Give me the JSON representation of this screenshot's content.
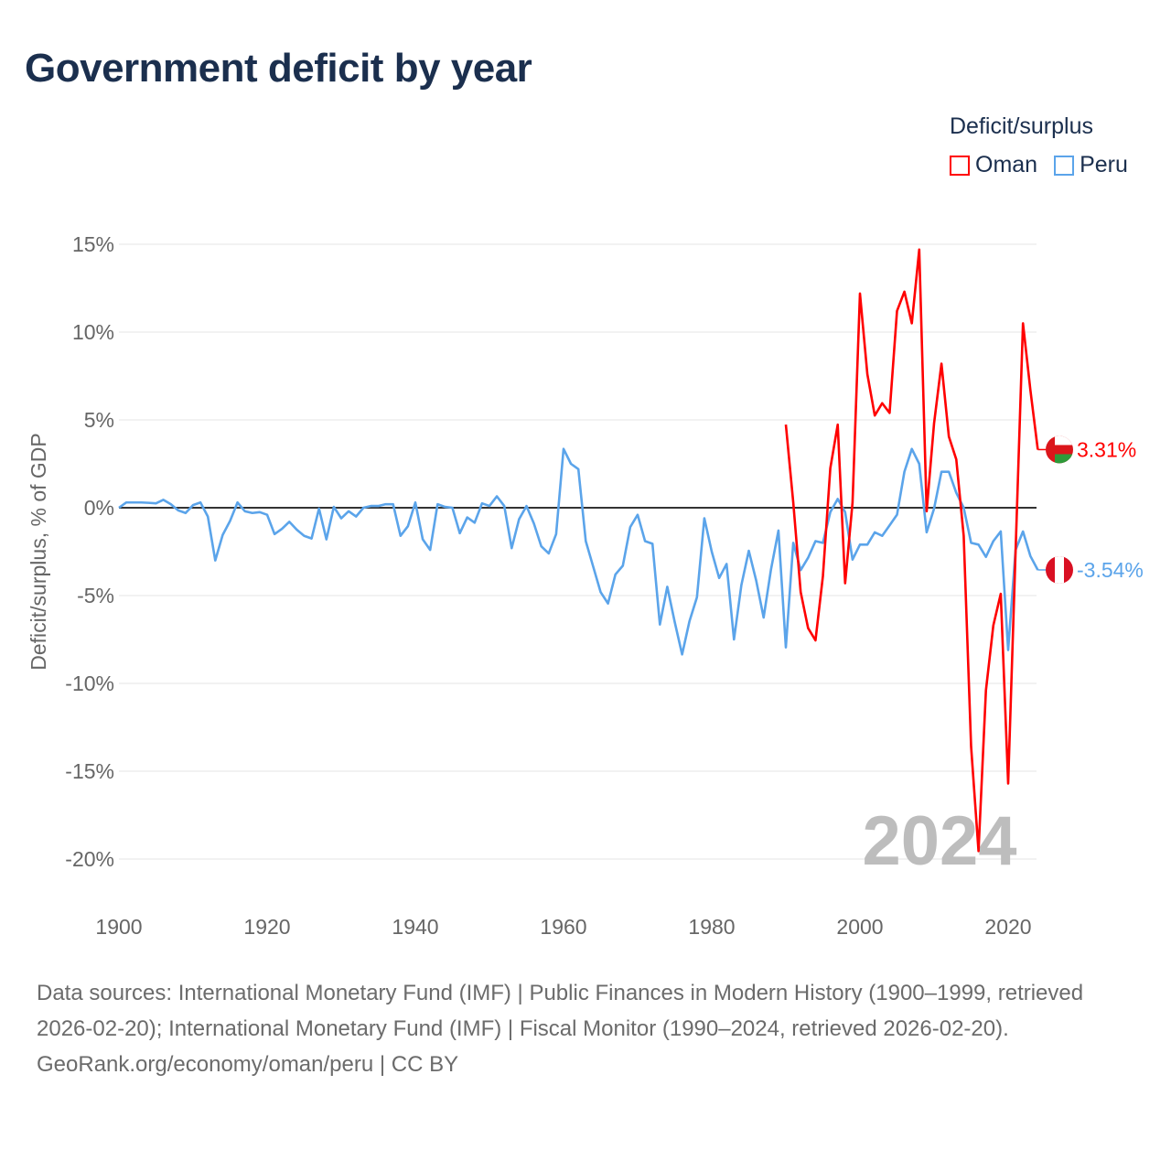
{
  "title": "Government deficit by year",
  "legend": {
    "title": "Deficit/surplus",
    "items": [
      {
        "name": "Oman",
        "color": "#ff0000"
      },
      {
        "name": "Peru",
        "color": "#5ba4ea"
      }
    ]
  },
  "footer": {
    "sources": "Data sources: International Monetary Fund (IMF) | Public Finances in Modern History (1900–1999, retrieved 2026-02-20); International Monetary Fund (IMF) | Fiscal Monitor (1990–2024, retrieved 2026-02-20).",
    "credit": "GeoRank.org/economy/oman/peru | CC BY"
  },
  "chart_data": {
    "type": "line",
    "title": "Government deficit by year",
    "xlabel": "",
    "ylabel": "Deficit/surplus, % of GDP",
    "xlim": [
      1900,
      2024
    ],
    "ylim": [
      -20,
      15
    ],
    "x_ticks": [
      "1900",
      "1920",
      "1940",
      "1960",
      "1980",
      "2000",
      "2020"
    ],
    "y_ticks": [
      "15%",
      "10%",
      "5%",
      "0%",
      "-5%",
      "-10%",
      "-15%",
      "-20%"
    ],
    "y_tick_values": [
      15,
      10,
      5,
      0,
      -5,
      -10,
      -15,
      -20
    ],
    "x_tick_values": [
      1900,
      1920,
      1940,
      1960,
      1980,
      2000,
      2020
    ],
    "grid": true,
    "year_label": "2024",
    "series": [
      {
        "name": "Oman",
        "color": "#ff0000",
        "end_label": "3.31%",
        "start_year": 1990,
        "values": [
          4.73,
          0.3,
          -4.8,
          -6.85,
          -7.55,
          -3.9,
          2.25,
          4.73,
          -4.3,
          0.3,
          12.2,
          7.6,
          5.25,
          5.95,
          5.4,
          11.2,
          12.3,
          10.5,
          14.7,
          -0.2,
          4.8,
          8.2,
          4.05,
          2.75,
          -1.6,
          -13.6,
          -19.55,
          -10.4,
          -6.7,
          -4.9,
          -15.7,
          -2.5,
          10.5,
          6.7,
          3.31
        ]
      },
      {
        "name": "Peru",
        "color": "#5ba4ea",
        "end_label": "-3.54%",
        "start_year": 1900,
        "values": [
          0,
          0.3,
          0.3,
          0.3,
          0.28,
          0.25,
          0.45,
          0.2,
          -0.15,
          -0.3,
          0.15,
          0.3,
          -0.5,
          -3.0,
          -1.55,
          -0.75,
          0.3,
          -0.2,
          -0.3,
          -0.25,
          -0.4,
          -1.5,
          -1.2,
          -0.8,
          -1.25,
          -1.6,
          -1.75,
          -0.05,
          -1.8,
          0.05,
          -0.6,
          -0.2,
          -0.5,
          0,
          0.1,
          0.1,
          0.2,
          0.2,
          -1.6,
          -1.05,
          0.3,
          -1.8,
          -2.4,
          0.2,
          0.05,
          0,
          -1.45,
          -0.55,
          -0.85,
          0.25,
          0.1,
          0.65,
          0.1,
          -2.3,
          -0.65,
          0.1,
          -0.9,
          -2.2,
          -2.6,
          -1.5,
          3.35,
          2.5,
          2.2,
          -1.9,
          -3.35,
          -4.8,
          -5.45,
          -3.8,
          -3.3,
          -1.1,
          -0.4,
          -1.9,
          -2.05,
          -6.65,
          -4.5,
          -6.5,
          -8.35,
          -6.45,
          -5.1,
          -0.6,
          -2.5,
          -4.0,
          -3.2,
          -7.5,
          -4.4,
          -2.45,
          -4.15,
          -6.25,
          -3.5,
          -1.3,
          -7.95,
          -2.0,
          -3.55,
          -2.85,
          -1.9,
          -2.0,
          -0.25,
          0.5,
          -0.25,
          -2.95,
          -2.1,
          -2.1,
          -1.4,
          -1.6,
          -1.0,
          -0.4,
          2.05,
          3.35,
          2.5,
          -1.4,
          -0.05,
          2.05,
          2.05,
          0.85,
          0,
          -2.0,
          -2.1,
          -2.8,
          -1.9,
          -1.35,
          -8.1,
          -2.4,
          -1.35,
          -2.75,
          -3.54
        ]
      }
    ]
  }
}
